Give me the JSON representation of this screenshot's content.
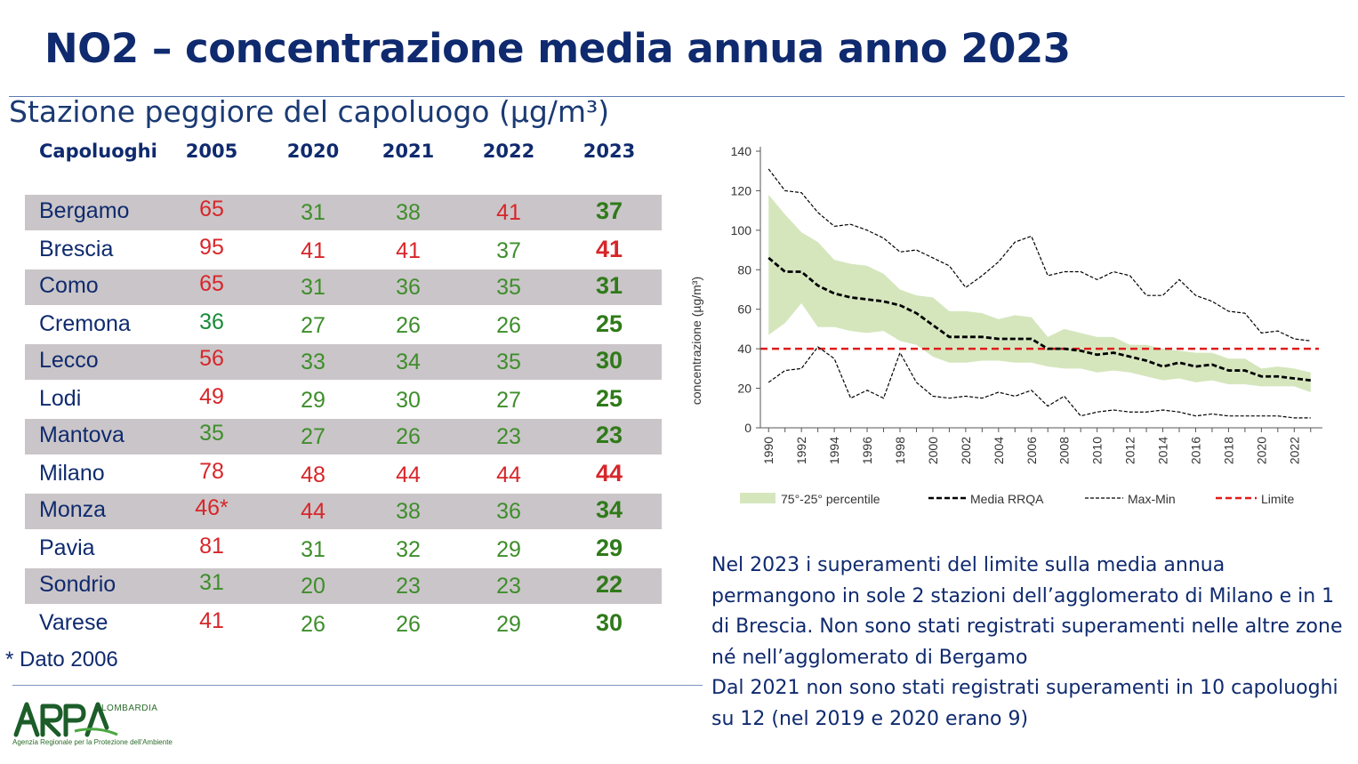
{
  "title": "NO2 – concentrazione media annua anno 2023",
  "subtitle": "Stazione peggiore del capoluogo (µg/m³)",
  "colors": {
    "red": "#d7262a",
    "green": "#3e8e2c",
    "dark_green": "#2f7a1a",
    "teal_green": "#1a8a3a",
    "navy": "#0f2a6e"
  },
  "table": {
    "headers": [
      "Capoluoghi",
      "2005",
      "2020",
      "2021",
      "2022",
      "2023"
    ],
    "rows": [
      {
        "name": "Bergamo",
        "values": [
          "65",
          "31",
          "38",
          "41",
          "37"
        ],
        "colors": [
          "red",
          "green",
          "green",
          "red",
          "dark_green"
        ]
      },
      {
        "name": "Brescia",
        "values": [
          "95",
          "41",
          "41",
          "37",
          "41"
        ],
        "colors": [
          "red",
          "red",
          "red",
          "green",
          "red"
        ]
      },
      {
        "name": "Como",
        "values": [
          "65",
          "31",
          "36",
          "35",
          "31"
        ],
        "colors": [
          "red",
          "green",
          "green",
          "green",
          "dark_green"
        ]
      },
      {
        "name": "Cremona",
        "values": [
          "36",
          "27",
          "26",
          "26",
          "25"
        ],
        "colors": [
          "teal_green",
          "green",
          "green",
          "green",
          "dark_green"
        ]
      },
      {
        "name": "Lecco",
        "values": [
          "56",
          "33",
          "34",
          "35",
          "30"
        ],
        "colors": [
          "red",
          "green",
          "green",
          "green",
          "dark_green"
        ]
      },
      {
        "name": "Lodi",
        "values": [
          "49",
          "29",
          "30",
          "27",
          "25"
        ],
        "colors": [
          "red",
          "green",
          "green",
          "green",
          "dark_green"
        ]
      },
      {
        "name": "Mantova",
        "values": [
          "35",
          "27",
          "26",
          "23",
          "23"
        ],
        "colors": [
          "green",
          "green",
          "green",
          "green",
          "dark_green"
        ]
      },
      {
        "name": "Milano",
        "values": [
          "78",
          "48",
          "44",
          "44",
          "44"
        ],
        "colors": [
          "red",
          "red",
          "red",
          "red",
          "red"
        ]
      },
      {
        "name": "Monza",
        "values": [
          "46*",
          "44",
          "38",
          "36",
          "34"
        ],
        "colors": [
          "red",
          "red",
          "green",
          "green",
          "dark_green"
        ]
      },
      {
        "name": "Pavia",
        "values": [
          "81",
          "31",
          "32",
          "29",
          "29"
        ],
        "colors": [
          "red",
          "green",
          "green",
          "green",
          "dark_green"
        ]
      },
      {
        "name": "Sondrio",
        "values": [
          "31",
          "20",
          "23",
          "23",
          "22"
        ],
        "colors": [
          "green",
          "green",
          "green",
          "green",
          "dark_green"
        ]
      },
      {
        "name": "Varese",
        "values": [
          "41",
          "26",
          "26",
          "29",
          "30"
        ],
        "colors": [
          "red",
          "green",
          "green",
          "green",
          "dark_green"
        ]
      }
    ]
  },
  "footnote": "* Dato 2006",
  "logo": {
    "mark": "ARPA",
    "region": "LOMBARDIA",
    "tagline": "Agenzia Regionale per la Protezione dell'Ambiente"
  },
  "note": {
    "para1": "Nel 2023 i superamenti del limite sulla media annua permangono in sole 2 stazioni dell’agglomerato di Milano e in 1 di Brescia. Non sono stati registrati superamenti nelle altre zone né nell’agglomerato di Bergamo",
    "para2": "Dal 2021 non sono stati registrati superamenti in 10 capoluoghi su 12 (nel 2019 e 2020 erano 9)"
  },
  "chart_data": {
    "type": "line",
    "ylabel": "concentrazione (µg/m³)",
    "ylim": [
      0,
      140
    ],
    "yticks": [
      0,
      20,
      40,
      60,
      80,
      100,
      120,
      140
    ],
    "xlim": [
      1990,
      2023
    ],
    "xticks": [
      1990,
      1992,
      1994,
      1996,
      1998,
      2000,
      2002,
      2004,
      2006,
      2008,
      2010,
      2012,
      2014,
      2016,
      2018,
      2020,
      2022
    ],
    "x": [
      1990,
      1991,
      1992,
      1993,
      1994,
      1995,
      1996,
      1997,
      1998,
      1999,
      2000,
      2001,
      2002,
      2003,
      2004,
      2005,
      2006,
      2007,
      2008,
      2009,
      2010,
      2011,
      2012,
      2013,
      2014,
      2015,
      2016,
      2017,
      2018,
      2019,
      2020,
      2021,
      2022,
      2023
    ],
    "band": {
      "name": "75°-25° percentile",
      "upper": [
        118,
        108,
        99,
        94,
        85,
        83,
        82,
        78,
        70,
        67,
        66,
        59,
        59,
        58,
        55,
        57,
        56,
        46,
        50,
        48,
        46,
        46,
        42,
        42,
        40,
        39,
        38,
        38,
        35,
        35,
        30,
        31,
        30,
        28
      ],
      "lower": [
        47,
        53,
        63,
        51,
        51,
        49,
        48,
        49,
        44,
        42,
        36,
        33,
        33,
        34,
        34,
        33,
        33,
        31,
        30,
        30,
        28,
        29,
        28,
        26,
        24,
        25,
        23,
        24,
        22,
        22,
        21,
        21,
        21,
        18
      ]
    },
    "series": [
      {
        "name": "Media RRQA",
        "style": "bold-dashed",
        "color": "#000000",
        "values": [
          86,
          79,
          79,
          72,
          68,
          66,
          65,
          64,
          62,
          58,
          52,
          46,
          46,
          46,
          45,
          45,
          45,
          40,
          40,
          39,
          37,
          38,
          36,
          34,
          31,
          33,
          31,
          32,
          29,
          29,
          26,
          26,
          25,
          24
        ]
      },
      {
        "name": "Max-Min",
        "style": "thin-dashed",
        "color": "#000000",
        "values": [
          131,
          120,
          119,
          109,
          102,
          103,
          100,
          96,
          89,
          90,
          86,
          82,
          71,
          77,
          84,
          94,
          97,
          77,
          79,
          79,
          75,
          79,
          77,
          67,
          67,
          75,
          67,
          64,
          59,
          58,
          48,
          49,
          45,
          44
        ]
      },
      {
        "name": "Max-Min (min)",
        "style": "thin-dashed",
        "color": "#000000",
        "values": [
          23,
          29,
          30,
          41,
          35,
          15,
          19,
          15,
          38,
          23,
          16,
          15,
          16,
          15,
          18,
          16,
          19,
          11,
          16,
          6,
          8,
          9,
          8,
          8,
          9,
          8,
          6,
          7,
          6,
          6,
          6,
          6,
          5,
          5
        ]
      }
    ],
    "limit": {
      "name": "Limite",
      "value": 40,
      "color": "#e01b1b"
    },
    "legend": [
      "75°-25° percentile",
      "Media RRQA",
      "Max-Min",
      "Limite"
    ],
    "legend_position": "bottom"
  }
}
